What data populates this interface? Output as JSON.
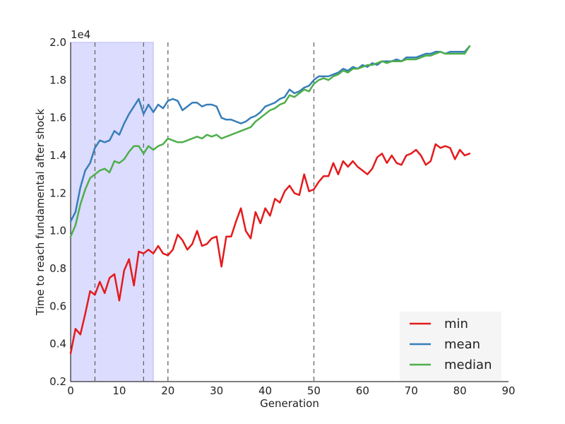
{
  "chart_data": {
    "type": "line",
    "xlabel": "Generation",
    "ylabel": "Time to reach fundamental after shock",
    "y_multiplier_label": "1e4",
    "xlim": [
      0,
      90
    ],
    "ylim": [
      0.2,
      2.0
    ],
    "xticks": [
      0,
      10,
      20,
      30,
      40,
      50,
      60,
      70,
      80,
      90
    ],
    "yticks": [
      0.2,
      0.4,
      0.6,
      0.8,
      1.0,
      1.2,
      1.4,
      1.6,
      1.8,
      2.0
    ],
    "xtick_labels": [
      "0",
      "10",
      "20",
      "30",
      "40",
      "50",
      "60",
      "70",
      "80",
      "90"
    ],
    "ytick_labels": [
      "0.2",
      "0.4",
      "0.6",
      "0.8",
      "1.0",
      "1.2",
      "1.4",
      "1.6",
      "1.8",
      "2.0"
    ],
    "grid": false,
    "legend_position": "bottom-right",
    "shaded_region": {
      "x": [
        0,
        17
      ],
      "color": "#dcdcff"
    },
    "vlines": [
      5,
      15,
      20,
      50
    ],
    "series": [
      {
        "name": "min",
        "color": "#e41a1c",
        "x": [
          0,
          1,
          2,
          3,
          4,
          5,
          6,
          7,
          8,
          9,
          10,
          11,
          12,
          13,
          14,
          15,
          16,
          17,
          18,
          19,
          20,
          21,
          22,
          23,
          24,
          25,
          26,
          27,
          28,
          29,
          30,
          31,
          32,
          33,
          34,
          35,
          36,
          37,
          38,
          39,
          40,
          41,
          42,
          43,
          44,
          45,
          46,
          47,
          48,
          49,
          50,
          51,
          52,
          53,
          54,
          55,
          56,
          57,
          58,
          59,
          60,
          61,
          62,
          63,
          64,
          65,
          66,
          67,
          68,
          69,
          70,
          71,
          72,
          73,
          74,
          75,
          76,
          77,
          78,
          79,
          80,
          81,
          82
        ],
        "values": [
          0.35,
          0.48,
          0.45,
          0.56,
          0.68,
          0.66,
          0.73,
          0.67,
          0.75,
          0.77,
          0.63,
          0.79,
          0.85,
          0.71,
          0.89,
          0.88,
          0.9,
          0.88,
          0.92,
          0.88,
          0.87,
          0.9,
          0.98,
          0.95,
          0.9,
          0.93,
          1.0,
          0.92,
          0.93,
          0.96,
          0.97,
          0.81,
          0.97,
          0.97,
          1.05,
          1.12,
          1.0,
          0.96,
          1.1,
          1.04,
          1.12,
          1.08,
          1.17,
          1.15,
          1.21,
          1.24,
          1.2,
          1.19,
          1.3,
          1.21,
          1.22,
          1.26,
          1.29,
          1.29,
          1.36,
          1.3,
          1.37,
          1.34,
          1.37,
          1.34,
          1.32,
          1.3,
          1.33,
          1.39,
          1.41,
          1.36,
          1.4,
          1.36,
          1.35,
          1.4,
          1.41,
          1.43,
          1.4,
          1.35,
          1.37,
          1.46,
          1.44,
          1.45,
          1.44,
          1.38,
          1.43,
          1.4,
          1.41
        ]
      },
      {
        "name": "mean",
        "color": "#377eb8",
        "x": [
          0,
          1,
          2,
          3,
          4,
          5,
          6,
          7,
          8,
          9,
          10,
          11,
          12,
          13,
          14,
          15,
          16,
          17,
          18,
          19,
          20,
          21,
          22,
          23,
          24,
          25,
          26,
          27,
          28,
          29,
          30,
          31,
          32,
          33,
          34,
          35,
          36,
          37,
          38,
          39,
          40,
          41,
          42,
          43,
          44,
          45,
          46,
          47,
          48,
          49,
          50,
          51,
          52,
          53,
          54,
          55,
          56,
          57,
          58,
          59,
          60,
          61,
          62,
          63,
          64,
          65,
          66,
          67,
          68,
          69,
          70,
          71,
          72,
          73,
          74,
          75,
          76,
          77,
          78,
          79,
          80,
          81,
          82
        ],
        "values": [
          1.05,
          1.1,
          1.23,
          1.32,
          1.36,
          1.44,
          1.48,
          1.47,
          1.48,
          1.53,
          1.51,
          1.57,
          1.62,
          1.66,
          1.7,
          1.62,
          1.67,
          1.63,
          1.67,
          1.65,
          1.69,
          1.7,
          1.69,
          1.64,
          1.66,
          1.68,
          1.68,
          1.66,
          1.67,
          1.67,
          1.66,
          1.6,
          1.59,
          1.59,
          1.58,
          1.57,
          1.58,
          1.6,
          1.61,
          1.63,
          1.66,
          1.67,
          1.68,
          1.7,
          1.71,
          1.75,
          1.73,
          1.74,
          1.76,
          1.77,
          1.8,
          1.82,
          1.82,
          1.82,
          1.83,
          1.84,
          1.86,
          1.85,
          1.87,
          1.86,
          1.88,
          1.87,
          1.89,
          1.88,
          1.9,
          1.9,
          1.9,
          1.91,
          1.9,
          1.92,
          1.92,
          1.92,
          1.93,
          1.94,
          1.94,
          1.95,
          1.95,
          1.94,
          1.95,
          1.95,
          1.95,
          1.95,
          1.98
        ]
      },
      {
        "name": "median",
        "color": "#4daf4a",
        "x": [
          0,
          1,
          2,
          3,
          4,
          5,
          6,
          7,
          8,
          9,
          10,
          11,
          12,
          13,
          14,
          15,
          16,
          17,
          18,
          19,
          20,
          21,
          22,
          23,
          24,
          25,
          26,
          27,
          28,
          29,
          30,
          31,
          32,
          33,
          34,
          35,
          36,
          37,
          38,
          39,
          40,
          41,
          42,
          43,
          44,
          45,
          46,
          47,
          48,
          49,
          50,
          51,
          52,
          53,
          54,
          55,
          56,
          57,
          58,
          59,
          60,
          61,
          62,
          63,
          64,
          65,
          66,
          67,
          68,
          69,
          70,
          71,
          72,
          73,
          74,
          75,
          76,
          77,
          78,
          79,
          80,
          81,
          82
        ],
        "values": [
          0.97,
          1.03,
          1.14,
          1.22,
          1.28,
          1.3,
          1.32,
          1.33,
          1.31,
          1.37,
          1.36,
          1.38,
          1.42,
          1.45,
          1.45,
          1.41,
          1.45,
          1.43,
          1.45,
          1.46,
          1.49,
          1.48,
          1.47,
          1.47,
          1.48,
          1.49,
          1.5,
          1.49,
          1.51,
          1.5,
          1.51,
          1.49,
          1.5,
          1.51,
          1.52,
          1.53,
          1.54,
          1.55,
          1.58,
          1.6,
          1.62,
          1.64,
          1.65,
          1.67,
          1.68,
          1.72,
          1.71,
          1.73,
          1.75,
          1.74,
          1.78,
          1.8,
          1.81,
          1.8,
          1.82,
          1.83,
          1.85,
          1.84,
          1.86,
          1.86,
          1.87,
          1.88,
          1.88,
          1.89,
          1.9,
          1.89,
          1.9,
          1.9,
          1.9,
          1.91,
          1.91,
          1.91,
          1.92,
          1.93,
          1.93,
          1.94,
          1.95,
          1.94,
          1.94,
          1.94,
          1.94,
          1.94,
          1.98
        ]
      }
    ]
  }
}
